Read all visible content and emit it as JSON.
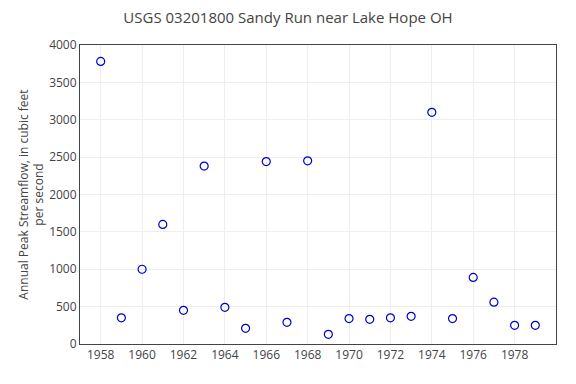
{
  "chart_data": {
    "type": "scatter",
    "title": "USGS 03201800 Sandy Run near Lake Hope OH",
    "ylabel": "Annual Peak Streamflow, in cubic feet\nper second",
    "x": [
      1958,
      1959,
      1960,
      1961,
      1962,
      1963,
      1964,
      1965,
      1966,
      1967,
      1968,
      1969,
      1970,
      1971,
      1972,
      1973,
      1974,
      1975,
      1976,
      1977,
      1978,
      1979
    ],
    "values": [
      3780,
      350,
      1000,
      1600,
      450,
      2380,
      490,
      210,
      2440,
      290,
      2450,
      130,
      340,
      330,
      350,
      370,
      3100,
      340,
      890,
      560,
      250,
      250
    ],
    "color": "#0000cc",
    "marker": "circle-open",
    "xlim": [
      1957.0,
      1980.0
    ],
    "ylim": [
      0,
      4000
    ],
    "xticks": [
      1958,
      1960,
      1962,
      1964,
      1966,
      1968,
      1970,
      1972,
      1974,
      1976,
      1978
    ],
    "yticks": [
      0,
      500,
      1000,
      1500,
      2000,
      2500,
      3000,
      3500,
      4000
    ],
    "grid": true
  }
}
